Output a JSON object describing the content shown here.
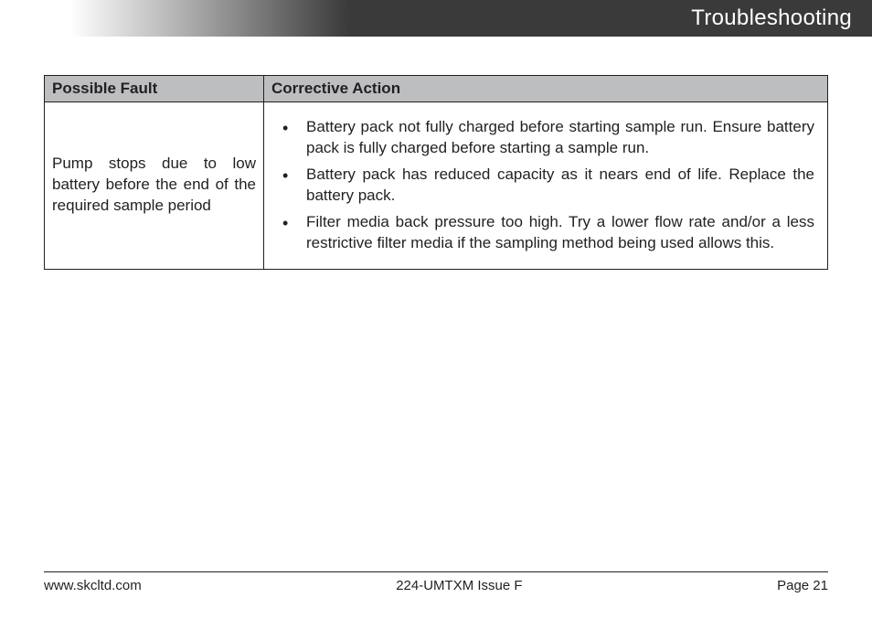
{
  "header": {
    "title": "Troubleshooting"
  },
  "table": {
    "headers": {
      "fault": "Possible Fault",
      "action": "Corrective Action"
    },
    "row": {
      "fault": "Pump stops due to low battery before the end of the required sample period",
      "actions": [
        "Battery pack not fully charged before starting sample run. Ensure battery pack is fully charged before starting a sample run.",
        "Battery pack has reduced capacity as it nears end of life. Replace the battery pack.",
        "Filter media back pressure too high. Try a lower flow rate and/or a less restrictive filter media if the sampling method being used allows this."
      ]
    }
  },
  "footer": {
    "left": "www.skcltd.com",
    "center": "224-UMTXM Issue F",
    "right": "Page 21"
  },
  "colors": {
    "header_gradient_start": "#ffffff",
    "header_gradient_end": "#3a3a3a",
    "table_header_bg": "#bdbec0",
    "border": "#231f20",
    "text": "#231f20",
    "header_text": "#ffffff",
    "background": "#ffffff"
  },
  "typography": {
    "header_fontsize": 24,
    "body_fontsize": 17,
    "footer_fontsize": 15,
    "font_family": "Arial, Helvetica, sans-serif"
  }
}
